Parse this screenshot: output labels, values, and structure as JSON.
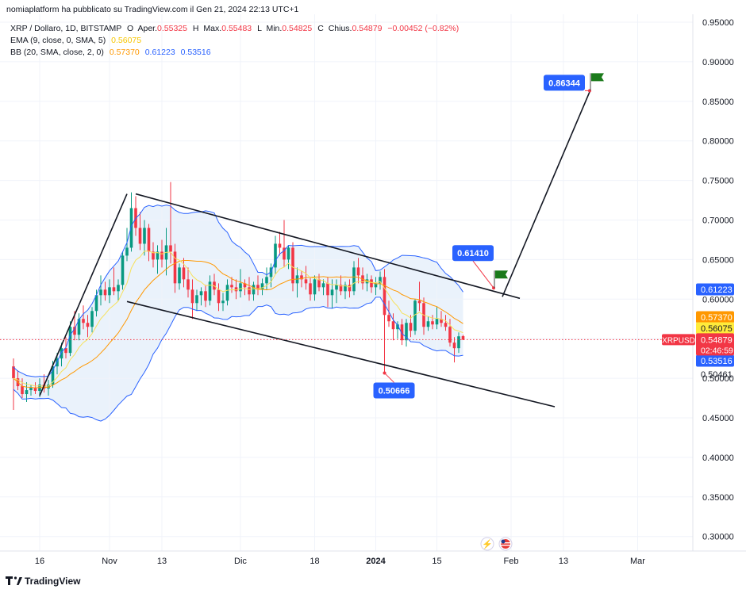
{
  "header": {
    "publisher": "nomiaplatform ha pubblicato su TradingView.com il Gen 21, 2024 22:13 UTC+1",
    "symbol_line": "XRP / Dollaro, 1D, BITSTAMP",
    "ohlc": {
      "open_label": "O",
      "open_prefix": "Aper.",
      "open": "0.55325",
      "high_label": "H",
      "high_prefix": "Max.",
      "high": "0.55483",
      "low_label": "L",
      "low_prefix": "Min.",
      "low": "0.54825",
      "close_label": "C",
      "close_prefix": "Chius.",
      "close": "0.54879",
      "change": "−0.00452 (−0.82%)"
    },
    "ema_line": {
      "label": "EMA (9, close, 0, SMA, 5)",
      "value": "0.56075"
    },
    "bb_line": {
      "label": "BB (20, SMA, close, 2, 0)",
      "v1": "0.57370",
      "v2": "0.61223",
      "v3": "0.53516"
    }
  },
  "colors": {
    "up": "#089981",
    "down": "#f23645",
    "ema": "#f7e15b",
    "bb_basis": "#ff9800",
    "bb_band": "#2962ff",
    "bb_fill": "#e3eefa",
    "callout": "#2962ff",
    "flag": "#1b7a1b",
    "last_price": "#f23645",
    "ema_tag": "#ffeb3b"
  },
  "chart_data": {
    "type": "candlestick",
    "y_ticks": [
      "0.95000",
      "0.90000",
      "0.85000",
      "0.80000",
      "0.75000",
      "0.70000",
      "0.65000",
      "0.60000",
      "0.55000",
      "0.50000",
      "0.45000",
      "0.40000",
      "0.35000",
      "0.30000"
    ],
    "x_ticks": [
      "16",
      "Nov",
      "13",
      "Dic",
      "18",
      "2024",
      "15",
      "Feb",
      "13",
      "Mar"
    ],
    "ylim": [
      0.285,
      0.955
    ],
    "candles": [
      {
        "d": "2023-10-10",
        "o": 0.515,
        "h": 0.525,
        "l": 0.46,
        "c": 0.5
      },
      {
        "d": "2023-10-11",
        "o": 0.5,
        "h": 0.51,
        "l": 0.485,
        "c": 0.49
      },
      {
        "d": "2023-10-12",
        "o": 0.49,
        "h": 0.5,
        "l": 0.475,
        "c": 0.48
      },
      {
        "d": "2023-10-13",
        "o": 0.48,
        "h": 0.495,
        "l": 0.47,
        "c": 0.485
      },
      {
        "d": "2023-10-14",
        "o": 0.485,
        "h": 0.492,
        "l": 0.478,
        "c": 0.488
      },
      {
        "d": "2023-10-15",
        "o": 0.488,
        "h": 0.495,
        "l": 0.48,
        "c": 0.484
      },
      {
        "d": "2023-10-16",
        "o": 0.484,
        "h": 0.5,
        "l": 0.476,
        "c": 0.492
      },
      {
        "d": "2023-10-17",
        "o": 0.492,
        "h": 0.505,
        "l": 0.482,
        "c": 0.487
      },
      {
        "d": "2023-10-18",
        "o": 0.487,
        "h": 0.498,
        "l": 0.478,
        "c": 0.492
      },
      {
        "d": "2023-10-19",
        "o": 0.492,
        "h": 0.522,
        "l": 0.488,
        "c": 0.515
      },
      {
        "d": "2023-10-20",
        "o": 0.515,
        "h": 0.532,
        "l": 0.505,
        "c": 0.525
      },
      {
        "d": "2023-10-21",
        "o": 0.525,
        "h": 0.545,
        "l": 0.515,
        "c": 0.538
      },
      {
        "d": "2023-10-22",
        "o": 0.538,
        "h": 0.552,
        "l": 0.525,
        "c": 0.532
      },
      {
        "d": "2023-10-23",
        "o": 0.532,
        "h": 0.572,
        "l": 0.528,
        "c": 0.565
      },
      {
        "d": "2023-10-24",
        "o": 0.565,
        "h": 0.585,
        "l": 0.548,
        "c": 0.555
      },
      {
        "d": "2023-10-25",
        "o": 0.555,
        "h": 0.582,
        "l": 0.548,
        "c": 0.575
      },
      {
        "d": "2023-10-26",
        "o": 0.575,
        "h": 0.592,
        "l": 0.562,
        "c": 0.57
      },
      {
        "d": "2023-10-27",
        "o": 0.57,
        "h": 0.58,
        "l": 0.552,
        "c": 0.565
      },
      {
        "d": "2023-10-28",
        "o": 0.565,
        "h": 0.59,
        "l": 0.558,
        "c": 0.585
      },
      {
        "d": "2023-10-29",
        "o": 0.585,
        "h": 0.612,
        "l": 0.578,
        "c": 0.605
      },
      {
        "d": "2023-10-30",
        "o": 0.605,
        "h": 0.63,
        "l": 0.592,
        "c": 0.612
      },
      {
        "d": "2023-10-31",
        "o": 0.612,
        "h": 0.622,
        "l": 0.598,
        "c": 0.605
      },
      {
        "d": "2023-11-01",
        "o": 0.605,
        "h": 0.625,
        "l": 0.595,
        "c": 0.615
      },
      {
        "d": "2023-11-02",
        "o": 0.615,
        "h": 0.64,
        "l": 0.605,
        "c": 0.61
      },
      {
        "d": "2023-11-03",
        "o": 0.61,
        "h": 0.625,
        "l": 0.598,
        "c": 0.618
      },
      {
        "d": "2023-11-04",
        "o": 0.618,
        "h": 0.66,
        "l": 0.612,
        "c": 0.655
      },
      {
        "d": "2023-11-05",
        "o": 0.655,
        "h": 0.69,
        "l": 0.648,
        "c": 0.665
      },
      {
        "d": "2023-11-06",
        "o": 0.665,
        "h": 0.735,
        "l": 0.66,
        "c": 0.715
      },
      {
        "d": "2023-11-07",
        "o": 0.715,
        "h": 0.73,
        "l": 0.68,
        "c": 0.69
      },
      {
        "d": "2023-11-08",
        "o": 0.69,
        "h": 0.71,
        "l": 0.662,
        "c": 0.67
      },
      {
        "d": "2023-11-09",
        "o": 0.67,
        "h": 0.7,
        "l": 0.655,
        "c": 0.69
      },
      {
        "d": "2023-11-10",
        "o": 0.69,
        "h": 0.695,
        "l": 0.648,
        "c": 0.66
      },
      {
        "d": "2023-11-11",
        "o": 0.66,
        "h": 0.672,
        "l": 0.64,
        "c": 0.65
      },
      {
        "d": "2023-11-12",
        "o": 0.65,
        "h": 0.668,
        "l": 0.632,
        "c": 0.66
      },
      {
        "d": "2023-11-13",
        "o": 0.66,
        "h": 0.675,
        "l": 0.64,
        "c": 0.65
      },
      {
        "d": "2023-11-14",
        "o": 0.65,
        "h": 0.69,
        "l": 0.63,
        "c": 0.668
      },
      {
        "d": "2023-11-15",
        "o": 0.668,
        "h": 0.748,
        "l": 0.645,
        "c": 0.66
      },
      {
        "d": "2023-11-16",
        "o": 0.66,
        "h": 0.67,
        "l": 0.608,
        "c": 0.62
      },
      {
        "d": "2023-11-17",
        "o": 0.62,
        "h": 0.645,
        "l": 0.612,
        "c": 0.64
      },
      {
        "d": "2023-11-18",
        "o": 0.64,
        "h": 0.652,
        "l": 0.615,
        "c": 0.625
      },
      {
        "d": "2023-11-19",
        "o": 0.625,
        "h": 0.64,
        "l": 0.602,
        "c": 0.612
      },
      {
        "d": "2023-11-20",
        "o": 0.612,
        "h": 0.625,
        "l": 0.575,
        "c": 0.595
      },
      {
        "d": "2023-11-21",
        "o": 0.595,
        "h": 0.612,
        "l": 0.585,
        "c": 0.605
      },
      {
        "d": "2023-11-22",
        "o": 0.605,
        "h": 0.615,
        "l": 0.592,
        "c": 0.61
      },
      {
        "d": "2023-11-23",
        "o": 0.61,
        "h": 0.618,
        "l": 0.59,
        "c": 0.598
      },
      {
        "d": "2023-11-24",
        "o": 0.598,
        "h": 0.63,
        "l": 0.592,
        "c": 0.622
      },
      {
        "d": "2023-11-25",
        "o": 0.622,
        "h": 0.632,
        "l": 0.605,
        "c": 0.612
      },
      {
        "d": "2023-11-26",
        "o": 0.612,
        "h": 0.62,
        "l": 0.585,
        "c": 0.595
      },
      {
        "d": "2023-11-27",
        "o": 0.595,
        "h": 0.608,
        "l": 0.585,
        "c": 0.598
      },
      {
        "d": "2023-11-28",
        "o": 0.598,
        "h": 0.625,
        "l": 0.592,
        "c": 0.618
      },
      {
        "d": "2023-11-29",
        "o": 0.618,
        "h": 0.628,
        "l": 0.608,
        "c": 0.615
      },
      {
        "d": "2023-11-30",
        "o": 0.615,
        "h": 0.625,
        "l": 0.6,
        "c": 0.61
      },
      {
        "d": "2023-12-01",
        "o": 0.61,
        "h": 0.638,
        "l": 0.602,
        "c": 0.62
      },
      {
        "d": "2023-12-02",
        "o": 0.62,
        "h": 0.625,
        "l": 0.605,
        "c": 0.615
      },
      {
        "d": "2023-12-03",
        "o": 0.615,
        "h": 0.628,
        "l": 0.598,
        "c": 0.606
      },
      {
        "d": "2023-12-04",
        "o": 0.606,
        "h": 0.622,
        "l": 0.598,
        "c": 0.618
      },
      {
        "d": "2023-12-05",
        "o": 0.618,
        "h": 0.63,
        "l": 0.605,
        "c": 0.612
      },
      {
        "d": "2023-12-06",
        "o": 0.612,
        "h": 0.626,
        "l": 0.605,
        "c": 0.62
      },
      {
        "d": "2023-12-07",
        "o": 0.62,
        "h": 0.64,
        "l": 0.612,
        "c": 0.628
      },
      {
        "d": "2023-12-08",
        "o": 0.628,
        "h": 0.645,
        "l": 0.615,
        "c": 0.64
      },
      {
        "d": "2023-12-09",
        "o": 0.64,
        "h": 0.68,
        "l": 0.632,
        "c": 0.67
      },
      {
        "d": "2023-12-10",
        "o": 0.67,
        "h": 0.685,
        "l": 0.655,
        "c": 0.665
      },
      {
        "d": "2023-12-11",
        "o": 0.665,
        "h": 0.7,
        "l": 0.64,
        "c": 0.65
      },
      {
        "d": "2023-12-12",
        "o": 0.65,
        "h": 0.668,
        "l": 0.638,
        "c": 0.665
      },
      {
        "d": "2023-12-13",
        "o": 0.665,
        "h": 0.672,
        "l": 0.61,
        "c": 0.62
      },
      {
        "d": "2023-12-14",
        "o": 0.62,
        "h": 0.64,
        "l": 0.602,
        "c": 0.63
      },
      {
        "d": "2023-12-15",
        "o": 0.63,
        "h": 0.636,
        "l": 0.615,
        "c": 0.625
      },
      {
        "d": "2023-12-16",
        "o": 0.625,
        "h": 0.642,
        "l": 0.612,
        "c": 0.62
      },
      {
        "d": "2023-12-17",
        "o": 0.62,
        "h": 0.628,
        "l": 0.598,
        "c": 0.606
      },
      {
        "d": "2023-12-18",
        "o": 0.606,
        "h": 0.63,
        "l": 0.598,
        "c": 0.625
      },
      {
        "d": "2023-12-19",
        "o": 0.625,
        "h": 0.632,
        "l": 0.61,
        "c": 0.615
      },
      {
        "d": "2023-12-20",
        "o": 0.615,
        "h": 0.625,
        "l": 0.605,
        "c": 0.62
      },
      {
        "d": "2023-12-21",
        "o": 0.62,
        "h": 0.628,
        "l": 0.59,
        "c": 0.605
      },
      {
        "d": "2023-12-22",
        "o": 0.605,
        "h": 0.625,
        "l": 0.588,
        "c": 0.612
      },
      {
        "d": "2023-12-23",
        "o": 0.612,
        "h": 0.625,
        "l": 0.595,
        "c": 0.618
      },
      {
        "d": "2023-12-24",
        "o": 0.618,
        "h": 0.63,
        "l": 0.605,
        "c": 0.61
      },
      {
        "d": "2023-12-25",
        "o": 0.61,
        "h": 0.622,
        "l": 0.6,
        "c": 0.618
      },
      {
        "d": "2023-12-26",
        "o": 0.618,
        "h": 0.625,
        "l": 0.602,
        "c": 0.61
      },
      {
        "d": "2023-12-27",
        "o": 0.61,
        "h": 0.648,
        "l": 0.605,
        "c": 0.64
      },
      {
        "d": "2023-12-28",
        "o": 0.64,
        "h": 0.652,
        "l": 0.62,
        "c": 0.63
      },
      {
        "d": "2023-12-29",
        "o": 0.63,
        "h": 0.64,
        "l": 0.612,
        "c": 0.62
      },
      {
        "d": "2023-12-30",
        "o": 0.62,
        "h": 0.632,
        "l": 0.61,
        "c": 0.625
      },
      {
        "d": "2023-12-31",
        "o": 0.625,
        "h": 0.63,
        "l": 0.608,
        "c": 0.615
      },
      {
        "d": "2024-01-01",
        "o": 0.615,
        "h": 0.628,
        "l": 0.605,
        "c": 0.62
      },
      {
        "d": "2024-01-02",
        "o": 0.62,
        "h": 0.635,
        "l": 0.612,
        "c": 0.628
      },
      {
        "d": "2024-01-03",
        "o": 0.628,
        "h": 0.638,
        "l": 0.507,
        "c": 0.58
      },
      {
        "d": "2024-01-04",
        "o": 0.58,
        "h": 0.598,
        "l": 0.565,
        "c": 0.572
      },
      {
        "d": "2024-01-05",
        "o": 0.572,
        "h": 0.582,
        "l": 0.548,
        "c": 0.562
      },
      {
        "d": "2024-01-06",
        "o": 0.562,
        "h": 0.572,
        "l": 0.55,
        "c": 0.568
      },
      {
        "d": "2024-01-07",
        "o": 0.568,
        "h": 0.575,
        "l": 0.542,
        "c": 0.548
      },
      {
        "d": "2024-01-08",
        "o": 0.548,
        "h": 0.575,
        "l": 0.54,
        "c": 0.57
      },
      {
        "d": "2024-01-09",
        "o": 0.57,
        "h": 0.58,
        "l": 0.552,
        "c": 0.56
      },
      {
        "d": "2024-01-10",
        "o": 0.56,
        "h": 0.6,
        "l": 0.555,
        "c": 0.598
      },
      {
        "d": "2024-01-11",
        "o": 0.598,
        "h": 0.622,
        "l": 0.585,
        "c": 0.595
      },
      {
        "d": "2024-01-12",
        "o": 0.595,
        "h": 0.602,
        "l": 0.555,
        "c": 0.565
      },
      {
        "d": "2024-01-13",
        "o": 0.565,
        "h": 0.578,
        "l": 0.56,
        "c": 0.572
      },
      {
        "d": "2024-01-14",
        "o": 0.572,
        "h": 0.58,
        "l": 0.562,
        "c": 0.568
      },
      {
        "d": "2024-01-15",
        "o": 0.568,
        "h": 0.59,
        "l": 0.562,
        "c": 0.575
      },
      {
        "d": "2024-01-16",
        "o": 0.575,
        "h": 0.585,
        "l": 0.565,
        "c": 0.57
      },
      {
        "d": "2024-01-17",
        "o": 0.57,
        "h": 0.58,
        "l": 0.56,
        "c": 0.565
      },
      {
        "d": "2024-01-18",
        "o": 0.565,
        "h": 0.575,
        "l": 0.54,
        "c": 0.545
      },
      {
        "d": "2024-01-19",
        "o": 0.545,
        "h": 0.552,
        "l": 0.52,
        "c": 0.538
      },
      {
        "d": "2024-01-20",
        "o": 0.538,
        "h": 0.558,
        "l": 0.532,
        "c": 0.553
      },
      {
        "d": "2024-01-21",
        "o": 0.55325,
        "h": 0.55483,
        "l": 0.54825,
        "c": 0.54879
      }
    ],
    "drawings": {
      "impulse_line": {
        "from": {
          "d": "2023-10-16",
          "v": 0.478
        },
        "to": {
          "d": "2023-11-05",
          "v": 0.733
        }
      },
      "channel_upper": {
        "from": {
          "d": "2023-11-07",
          "v": 0.733
        },
        "to": {
          "d": "2024-02-03",
          "v": 0.601
        }
      },
      "channel_lower": {
        "from": {
          "d": "2023-11-05",
          "v": 0.597
        },
        "to": {
          "d": "2024-02-11",
          "v": 0.464
        }
      },
      "target_line": {
        "from": {
          "d": "2024-01-30",
          "v": 0.603
        },
        "to": {
          "d": "2024-02-19",
          "v": 0.862
        }
      }
    },
    "callouts": [
      {
        "label": "0.86344",
        "point": {
          "d": "2024-02-19",
          "v": 0.86344
        },
        "pos": "left",
        "flag": true
      },
      {
        "label": "0.61410",
        "point": {
          "d": "2024-01-28",
          "v": 0.6141
        },
        "pos": "above",
        "flag": true
      },
      {
        "label": "0.50666",
        "point": {
          "d": "2024-01-03",
          "v": 0.50666
        },
        "pos": "below",
        "flag": false
      }
    ],
    "price_tags": [
      {
        "label": "0.61223",
        "v": 0.61223,
        "kind": "band"
      },
      {
        "label": "0.57370",
        "v": 0.5737,
        "kind": "basis"
      },
      {
        "label": "0.56075",
        "v": 0.56075,
        "kind": "ema"
      },
      {
        "label": "0.53516",
        "v": 0.53516,
        "kind": "band"
      },
      {
        "label": "0.50461",
        "v": 0.50461,
        "kind": "plain"
      }
    ],
    "last_price": {
      "symbol": "XRPUSD",
      "value": "0.54879",
      "v": 0.54879,
      "countdown": "02:46:59"
    }
  },
  "footer": {
    "brand": "TradingView"
  }
}
